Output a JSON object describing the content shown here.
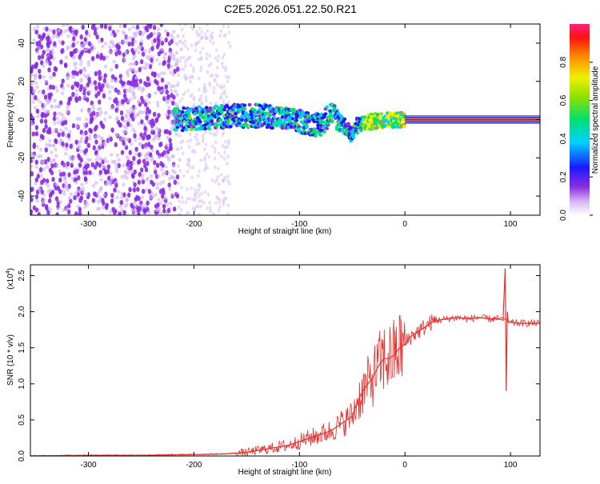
{
  "title": "C2E5.2026.051.22.50.R21",
  "chart_data": [
    {
      "type": "heatmap",
      "xlabel": "Height of straight line (km)",
      "ylabel": "Frequency (Hz)",
      "xlim": [
        -355,
        128
      ],
      "ylim": [
        -50,
        50
      ],
      "x_ticks": [
        -300,
        -200,
        -100,
        0,
        100
      ],
      "x_tick_labels": [
        "-300",
        "-200",
        "-100",
        "0",
        "100"
      ],
      "y_ticks": [
        40,
        20,
        0,
        -20,
        -40
      ],
      "y_tick_labels": [
        "40",
        "20",
        "0",
        "-20",
        "-40"
      ],
      "colorbar": {
        "label": "Normalized spectral amplitude",
        "range": [
          0,
          1
        ],
        "ticks": [
          0.0,
          0.2,
          0.4,
          0.6,
          0.8
        ],
        "tick_labels": [
          "0.0",
          "0.2",
          "0.4",
          "0.6",
          "0.8"
        ]
      },
      "ridge": {
        "x": [
          -215,
          -190,
          -160,
          -130,
          -100,
          -80,
          -70,
          -60,
          -50,
          -45,
          -40,
          -30,
          -20,
          -10,
          0,
          50,
          100,
          128
        ],
        "y": [
          0,
          1,
          2,
          2,
          -1,
          -3,
          4,
          -2,
          -8,
          -3,
          -2,
          -1,
          0,
          0,
          0,
          0,
          0,
          0
        ]
      }
    },
    {
      "type": "line",
      "xlabel": "Height of straight line (km)",
      "ylabel": "SNR (10 * v/v)",
      "y_multiplier": "(x10",
      "y_multiplier_exp": "4",
      "xlim": [
        -355,
        128
      ],
      "ylim": [
        0,
        2.65
      ],
      "x_ticks": [
        -300,
        -200,
        -100,
        0,
        100
      ],
      "x_tick_labels": [
        "-300",
        "-200",
        "-100",
        "0",
        "100"
      ],
      "y_ticks": [
        0.0,
        0.5,
        1.0,
        1.5,
        2.0,
        2.5
      ],
      "y_tick_labels": [
        "0.0",
        "0.5",
        "1.0",
        "1.5",
        "2.0",
        "2.5"
      ],
      "series": [
        {
          "name": "SNR",
          "color": "#e8302e",
          "x": [
            -355,
            -300,
            -250,
            -200,
            -170,
            -150,
            -130,
            -110,
            -100,
            -90,
            -80,
            -70,
            -60,
            -50,
            -45,
            -40,
            -35,
            -30,
            -25,
            -20,
            -15,
            -10,
            -5,
            0,
            5,
            10,
            15,
            20,
            25,
            30,
            40,
            50,
            60,
            70,
            80,
            90,
            93,
            95,
            96,
            97,
            98,
            100,
            110,
            120,
            128
          ],
          "y": [
            0.0,
            0.01,
            0.01,
            0.02,
            0.03,
            0.05,
            0.1,
            0.15,
            0.2,
            0.25,
            0.3,
            0.35,
            0.45,
            0.55,
            0.75,
            0.9,
            1.0,
            1.1,
            1.25,
            1.35,
            1.35,
            1.4,
            1.5,
            1.55,
            1.65,
            1.7,
            1.75,
            1.8,
            1.85,
            1.88,
            1.9,
            1.92,
            1.9,
            1.92,
            1.9,
            1.9,
            1.88,
            2.6,
            0.9,
            2.0,
            1.85,
            1.85,
            1.84,
            1.84,
            1.84
          ]
        }
      ]
    }
  ],
  "colors": {
    "axis": "#000000",
    "line": "#e8302e",
    "scatter_low": "#8a2be2",
    "scatter_faint": "#c9a6f0"
  }
}
